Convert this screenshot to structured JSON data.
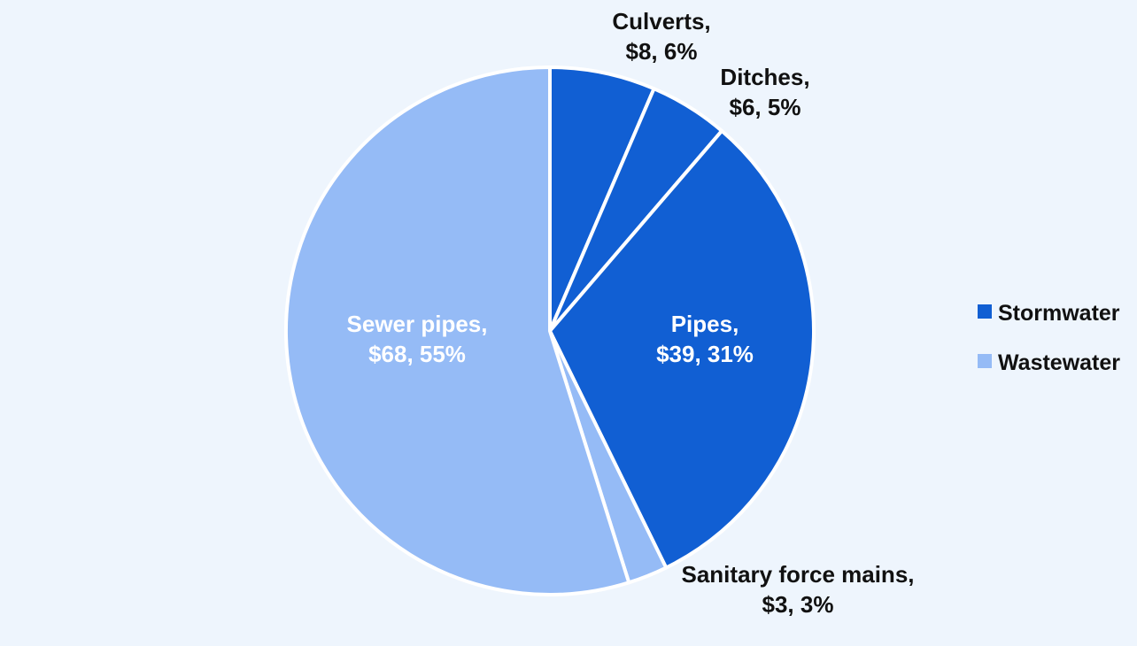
{
  "chart_data": {
    "type": "pie",
    "title": "",
    "slices": [
      {
        "category": "Culverts",
        "value": 8,
        "percent": 6,
        "group": "Stormwater",
        "line1": "Culverts,",
        "line2": "$8, 6%"
      },
      {
        "category": "Ditches",
        "value": 6,
        "percent": 5,
        "group": "Stormwater",
        "line1": "Ditches,",
        "line2": "$6, 5%"
      },
      {
        "category": "Pipes",
        "value": 39,
        "percent": 31,
        "group": "Stormwater",
        "line1": "Pipes,",
        "line2": "$39, 31%"
      },
      {
        "category": "Sanitary force mains",
        "value": 3,
        "percent": 3,
        "group": "Wastewater",
        "line1": "Sanitary force mains,",
        "line2": "$3, 3%"
      },
      {
        "category": "Sewer pipes",
        "value": 68,
        "percent": 55,
        "group": "Wastewater",
        "line1": "Sewer pipes,",
        "line2": "$68, 55%"
      }
    ],
    "legend": {
      "position": "right",
      "entries": [
        {
          "name": "Stormwater",
          "color": "#115fd3"
        },
        {
          "name": "Wastewater",
          "color": "#95bbf6"
        }
      ]
    }
  }
}
